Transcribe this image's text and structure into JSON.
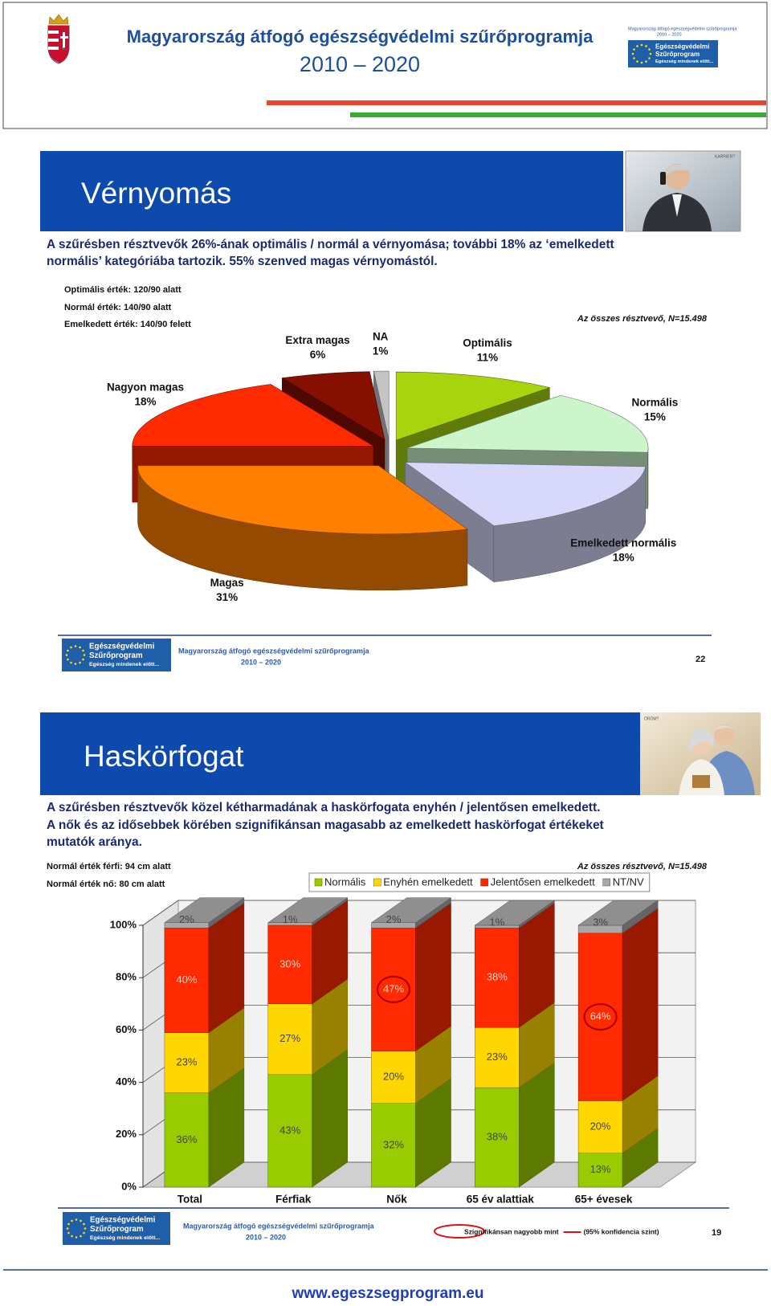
{
  "header": {
    "title": "Magyarország átfogó egészségvédelmi szűrőprogramja",
    "years": "2010 – 2020",
    "eu_logo": {
      "caption": "Magyarország átfogó egészségvédelmi szűrőprogramja",
      "years": "2010 – 2020",
      "lines": [
        "Egészségvédelmi",
        "Szűrőprogram",
        "Egészség mindenek előtt..."
      ]
    }
  },
  "slides": [
    {
      "title": "Vérnyomás",
      "photo_caption": "KARRIER?",
      "text": [
        "A szűrésben résztvevők 26%-ának optimális / normál a vérnyomása; további 18% az ‘emelkedett",
        "normális’ kategóriába tartozik. 55% szenved magas vérnyomástól."
      ],
      "notes": [
        "Optimális érték: 120/90 alatt",
        "Normál érték: 140/90 alatt",
        "Emelkedett érték: 140/90 felett"
      ],
      "sample": "Az összes résztvevő, N=15.498",
      "logo_lines": [
        "Egészségvédelmi",
        "Szűrőprogram",
        "Egészség mindenek előtt..."
      ],
      "footer_program": "Magyarország átfogó egészségvédelmi szűrőprogramja",
      "footer_years": "2010 – 2020",
      "page": "22"
    },
    {
      "title": "Haskörfogat",
      "photo_caption": "ÖRÖM?",
      "text": [
        "A szűrésben résztvevők közel kétharmadának a haskörfogata enyhén / jelentősen emelkedett.",
        "A nők és az idősebbek körében szignifikánsan magasabb az emelkedett haskörfogat értékeket",
        "mutatók aránya."
      ],
      "notes": [
        "Normál érték férfi: 94 cm alatt",
        "Normál érték nő: 80 cm alatt"
      ],
      "sample": "Az összes résztvevő, N=15.498",
      "logo_lines": [
        "Egészségvédelmi",
        "Szűrőprogram",
        "Egészség mindenek előtt..."
      ],
      "footer_program": "Magyarország átfogó egészségvédelmi szűrőprogramja",
      "footer_years": "2010 – 2020",
      "significance_note": [
        "Szignifikánsan nagyobb mint",
        "(95% konfidencia szint)"
      ],
      "page": "19"
    }
  ],
  "chart_data": [
    {
      "type": "pie",
      "three_d": true,
      "categories": [
        "Optimális",
        "Normális",
        "Emelkedett normális",
        "Magas",
        "Nagyon magas",
        "Extra magas",
        "NA"
      ],
      "values": [
        11,
        15,
        18,
        31,
        18,
        6,
        1
      ],
      "value_labels": [
        "11%",
        "15%",
        "18%",
        "31%",
        "18%",
        "6%",
        "1%"
      ],
      "colors": [
        "#a8d40e",
        "#ccf5cc",
        "#d8d8fa",
        "#ff7f00",
        "#ff2a00",
        "#851000",
        "#c4c4c4"
      ]
    },
    {
      "type": "stacked_bar",
      "three_d": true,
      "categories": [
        "Total",
        "Férfiak",
        "Nők",
        "65 év alattiak",
        "65+ évesek"
      ],
      "series": [
        {
          "name": "Normális",
          "color": "#99cc00",
          "values": [
            36,
            43,
            32,
            38,
            13
          ],
          "value_labels": [
            "36%",
            "43%",
            "32%",
            "38%",
            "13%"
          ]
        },
        {
          "name": "Enyhén emelkedett",
          "color": "#ffd700",
          "values": [
            23,
            27,
            20,
            23,
            20
          ],
          "value_labels": [
            "23%",
            "27%",
            "20%",
            "23%",
            "20%"
          ]
        },
        {
          "name": "Jelentősen emelkedett",
          "color": "#ff2a00",
          "values": [
            40,
            30,
            47,
            38,
            64
          ],
          "value_labels": [
            "40%",
            "30%",
            "47%",
            "38%",
            "64%"
          ],
          "highlight": [
            false,
            false,
            true,
            false,
            true
          ]
        },
        {
          "name": "NT/NV",
          "color": "#a8a8a8",
          "values": [
            2,
            1,
            2,
            1,
            3
          ],
          "value_labels": [
            "2%",
            "1%",
            "2%",
            "1%",
            "3%"
          ]
        }
      ],
      "ylim": [
        0,
        100
      ],
      "yticks": [
        {
          "value": 0,
          "label": "0%"
        },
        {
          "value": 20,
          "label": "20%"
        },
        {
          "value": 40,
          "label": "40%"
        },
        {
          "value": 60,
          "label": "60%"
        },
        {
          "value": 80,
          "label": "80%"
        },
        {
          "value": 100,
          "label": "100%"
        }
      ],
      "grid": true,
      "legend": "top"
    }
  ],
  "footer": {
    "url": "www.egeszsegprogram.eu"
  }
}
